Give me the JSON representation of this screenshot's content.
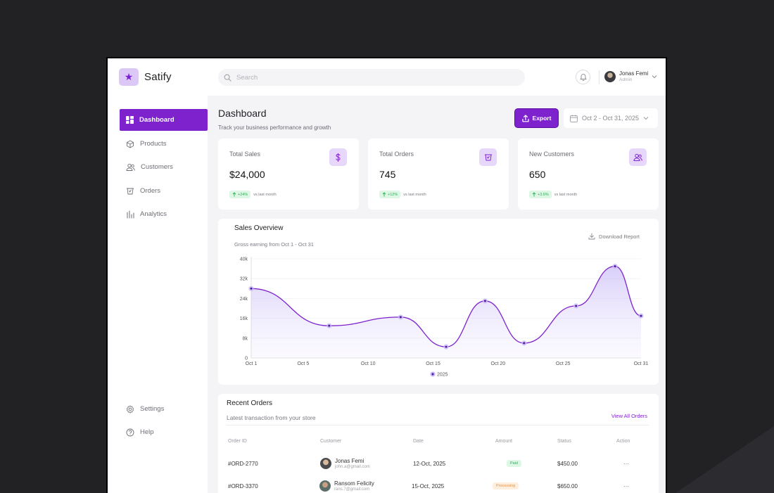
{
  "app": {
    "name": "Satify",
    "logo_icon": "star-icon"
  },
  "search": {
    "placeholder": "Search"
  },
  "user": {
    "name": "Jonas Femi",
    "role": "Admin"
  },
  "sidebar": {
    "items": [
      {
        "label": "Dashboard",
        "icon": "grid-icon",
        "active": true
      },
      {
        "label": "Products",
        "icon": "box-icon"
      },
      {
        "label": "Customers",
        "icon": "users-icon"
      },
      {
        "label": "Orders",
        "icon": "basket-icon"
      },
      {
        "label": "Analytics",
        "icon": "bar-chart-icon"
      }
    ],
    "bottom": [
      {
        "label": "Settings",
        "icon": "gear-icon"
      },
      {
        "label": "Help",
        "icon": "help-icon"
      }
    ]
  },
  "page": {
    "title": "Dashboard",
    "subtitle": "Track your business performance and growth",
    "export_label": "Export",
    "date_range": "Oct 2 - Oct 31, 2025"
  },
  "stats": [
    {
      "label": "Total Sales",
      "value": "$24,000",
      "change": "+24%",
      "note": "vs last month",
      "icon": "dollar-icon"
    },
    {
      "label": "Total Orders",
      "value": "745",
      "change": "+12%",
      "note": "vs last month",
      "icon": "basket-icon"
    },
    {
      "label": "New Customers",
      "value": "650",
      "change": "+3.6%",
      "note": "vs last month",
      "icon": "users-icon"
    }
  ],
  "sales_overview": {
    "title": "Sales Overview",
    "subtitle": "Gross earning from Oct 1 - Oct 31",
    "download_label": "Download Report"
  },
  "chart_data": {
    "type": "line",
    "title": "Sales Overview",
    "subtitle": "Gross earning from Oct 1 - Oct 31",
    "x_labels": [
      "Oct 1",
      "Oct 5",
      "Oct 10",
      "Oct 15",
      "Oct 20",
      "Oct 25",
      "Oct 31"
    ],
    "x": [
      1,
      5,
      10,
      15,
      20,
      25,
      31
    ],
    "y_ticks": [
      "0",
      "8k",
      "16k",
      "24k",
      "32k",
      "40k"
    ],
    "ylim": [
      0,
      40000
    ],
    "xlim": [
      1,
      31
    ],
    "grid": true,
    "legend": "bottom-center",
    "series": [
      {
        "name": "2025",
        "color": "#7e22ce",
        "points": [
          {
            "x": 1,
            "y": 28000
          },
          {
            "x": 7,
            "y": 13000
          },
          {
            "x": 12.5,
            "y": 16500
          },
          {
            "x": 16,
            "y": 4500
          },
          {
            "x": 19,
            "y": 23000
          },
          {
            "x": 22,
            "y": 6000
          },
          {
            "x": 26,
            "y": 21000
          },
          {
            "x": 29,
            "y": 37000
          },
          {
            "x": 31,
            "y": 17000
          }
        ]
      }
    ]
  },
  "orders": {
    "title": "Recent Orders",
    "subtitle": "Latest transaction from your store",
    "view_all": "View All Orders",
    "columns": [
      "Order ID",
      "Customer",
      "Date",
      "Amount",
      "Status",
      "Action"
    ],
    "rows": [
      {
        "id": "#ORD-2770",
        "name": "Jonas Femi",
        "email": "john.a@gmail.com",
        "date": "12-Oct, 2025",
        "badge": "Paid",
        "amount": "$450.00",
        "action": "···"
      },
      {
        "id": "#ORD-3370",
        "name": "Ransom Felicity",
        "email": "rans.7@gmail.com",
        "date": "15-Oct, 2025",
        "badge": "Processing",
        "amount": "$650.00",
        "action": "···"
      }
    ]
  },
  "colors": {
    "accent": "#7e22ce",
    "paid_bg": "#dcf7e3",
    "paid_fg": "#2fae57",
    "processing_bg": "#fdeede",
    "processing_fg": "#e8923a"
  }
}
